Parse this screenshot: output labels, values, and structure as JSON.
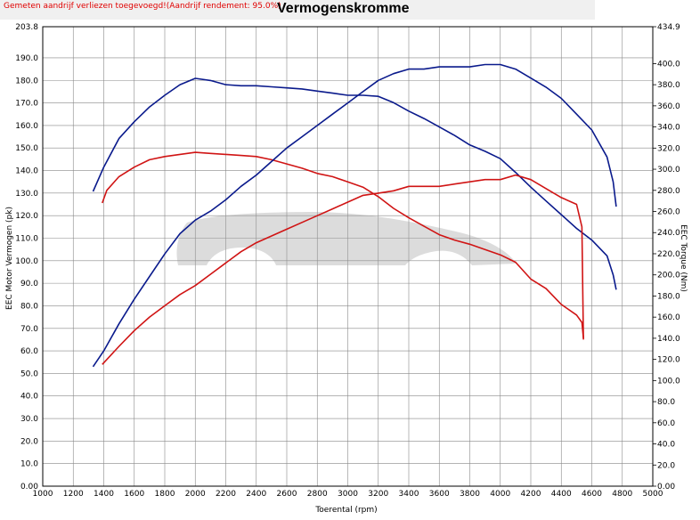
{
  "header": {
    "note": "Gemeten aandrijf verliezen toegevoegd!(Aandrijf rendement: 95.0%)",
    "title": "Vermogenskromme"
  },
  "colors": {
    "power": "#0a1a8c",
    "torque": "#d01414",
    "grid": "#888888"
  },
  "chart_data": {
    "type": "line",
    "title": "Vermogenskromme",
    "xlabel": "Toerental (rpm)",
    "ylabel": "EEC Motor Vermogen (pk)",
    "y2label": "EEC Torque (Nm)",
    "xlim": [
      1000,
      5000
    ],
    "ylim": [
      0,
      203.8
    ],
    "y2lim": [
      0,
      434.9
    ],
    "grid": true,
    "x_ticks": [
      "1000",
      "1200",
      "1400",
      "1600",
      "1800",
      "2000",
      "2200",
      "2400",
      "2600",
      "2800",
      "3000",
      "3200",
      "3400",
      "3600",
      "3800",
      "4000",
      "4200",
      "4400",
      "4600",
      "4800",
      "5000"
    ],
    "y_ticks": [
      "0.00",
      "10.0",
      "20.0",
      "30.0",
      "40.0",
      "50.0",
      "60.0",
      "70.0",
      "80.0",
      "90.0",
      "100.0",
      "110.0",
      "120.0",
      "130.0",
      "140.0",
      "150.0",
      "160.0",
      "170.0",
      "180.0",
      "190.0",
      "203.8"
    ],
    "y2_ticks": [
      "0.00",
      "20.0",
      "40.0",
      "60.0",
      "80.0",
      "100.0",
      "120.0",
      "140.0",
      "160.0",
      "180.0",
      "200.0",
      "220.0",
      "240.0",
      "260.0",
      "280.0",
      "300.0",
      "320.0",
      "340.0",
      "360.0",
      "380.0",
      "400.0",
      "434.9"
    ],
    "series": [
      {
        "axis": "y2",
        "color": "#0a1a8c",
        "x": [
          1330,
          1400,
          1500,
          1600,
          1700,
          1800,
          1900,
          2000,
          2100,
          2200,
          2300,
          2400,
          2500,
          2600,
          2700,
          2800,
          2900,
          3000,
          3100,
          3200,
          3300,
          3400,
          3500,
          3600,
          3700,
          3800,
          3900,
          4000,
          4100,
          4200,
          4300,
          4400,
          4500,
          4600,
          4700,
          4740,
          4760
        ],
        "y": [
          279,
          302,
          329,
          345,
          359,
          370,
          380,
          386,
          384,
          380,
          379,
          379,
          378,
          377,
          376,
          374,
          372,
          370,
          370,
          369,
          363,
          355,
          348,
          340,
          332,
          323,
          317,
          310,
          297,
          283,
          270,
          257,
          244,
          233,
          218,
          200,
          186
        ]
      },
      {
        "axis": "y2",
        "color": "#d01414",
        "x": [
          1390,
          1420,
          1500,
          1600,
          1700,
          1800,
          1900,
          2000,
          2100,
          2200,
          2300,
          2400,
          2500,
          2600,
          2700,
          2800,
          2900,
          3000,
          3100,
          3200,
          3300,
          3400,
          3500,
          3600,
          3700,
          3800,
          3900,
          4000,
          4100,
          4200,
          4300,
          4400,
          4500,
          4535,
          4545
        ],
        "y": [
          268,
          280,
          293,
          302,
          309,
          312,
          314,
          316,
          315,
          314,
          313,
          312,
          309,
          305,
          301,
          296,
          293,
          288,
          283,
          274,
          263,
          254,
          246,
          238,
          233,
          229,
          224,
          219,
          212,
          196,
          187,
          172,
          162,
          155,
          140
        ]
      },
      {
        "axis": "y",
        "color": "#0a1a8c",
        "x": [
          1330,
          1400,
          1500,
          1600,
          1700,
          1800,
          1900,
          2000,
          2100,
          2200,
          2300,
          2400,
          2500,
          2600,
          2700,
          2800,
          2900,
          3000,
          3100,
          3200,
          3300,
          3400,
          3500,
          3600,
          3700,
          3800,
          3900,
          4000,
          4100,
          4200,
          4300,
          4400,
          4500,
          4600,
          4700,
          4740,
          4760
        ],
        "y": [
          53,
          60,
          72,
          83,
          93,
          103,
          112,
          118,
          122,
          127,
          133,
          138,
          144,
          150,
          155,
          160,
          165,
          170,
          175,
          180,
          183,
          185,
          185,
          186,
          186,
          186,
          187,
          187,
          185,
          181,
          177,
          172,
          165,
          158,
          146,
          135,
          124
        ]
      },
      {
        "axis": "y",
        "color": "#d01414",
        "x": [
          1390,
          1500,
          1600,
          1700,
          1800,
          1900,
          2000,
          2100,
          2200,
          2300,
          2400,
          2500,
          2600,
          2700,
          2800,
          2900,
          3000,
          3100,
          3200,
          3300,
          3400,
          3500,
          3600,
          3700,
          3800,
          3900,
          4000,
          4100,
          4200,
          4300,
          4400,
          4500,
          4535,
          4545
        ],
        "y": [
          54,
          62,
          69,
          75,
          80,
          85,
          89,
          94,
          99,
          104,
          108,
          111,
          114,
          117,
          120,
          123,
          126,
          129,
          130,
          131,
          133,
          133,
          133,
          134,
          135,
          136,
          136,
          138,
          136,
          132,
          128,
          125,
          115,
          65
        ]
      }
    ]
  }
}
